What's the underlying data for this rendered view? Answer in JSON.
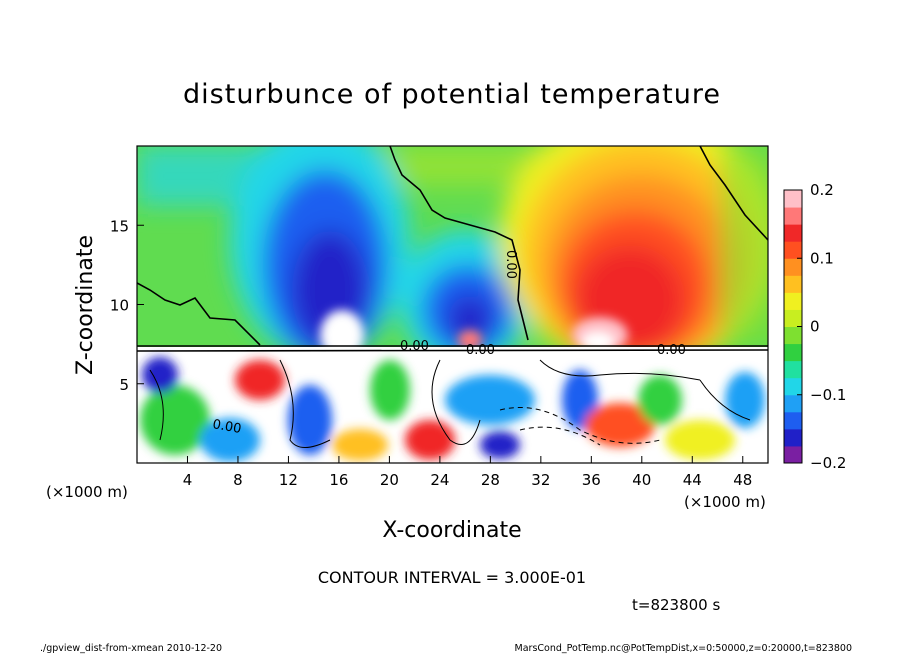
{
  "chart_data": {
    "type": "heatmap",
    "title": "disturbunce of potential temperature",
    "xlabel": "X-coordinate",
    "ylabel": "Z-coordinate",
    "x_unit_left": "(×1000 m)",
    "x_unit_right": "(×1000 m)",
    "xlim": [
      0,
      50
    ],
    "ylim": [
      0,
      20
    ],
    "x_ticks": [
      4,
      8,
      12,
      16,
      20,
      24,
      28,
      32,
      36,
      40,
      44,
      48
    ],
    "y_ticks": [
      5,
      10,
      15
    ],
    "colorbar": {
      "range": [
        -0.2,
        0.2
      ],
      "ticks": [
        {
          "value": 0.2,
          "label": "0.2"
        },
        {
          "value": 0.1,
          "label": "0.1"
        },
        {
          "value": 0,
          "label": "0"
        },
        {
          "value": -0.1,
          "label": "−0.1"
        },
        {
          "value": -0.2,
          "label": "−0.2"
        }
      ],
      "colors": [
        "#7a1fa2",
        "#2020c8",
        "#1e5ef0",
        "#1fa0f5",
        "#21d6e8",
        "#20e0a0",
        "#30d040",
        "#7ee030",
        "#c8ee20",
        "#f0f020",
        "#ffc020",
        "#ff9020",
        "#ff5020",
        "#f02828",
        "#ff7878",
        "#ffc0c8"
      ]
    },
    "contour_labels": [
      "0.00",
      "0.00",
      "0.00",
      "0.00",
      "0.00"
    ],
    "contour_interval": "CONTOUR INTERVAL = 3.000E-01",
    "time_label": "t=823800 s"
  },
  "footer": {
    "left": "./gpview_dist-from-xmean  2010-12-20",
    "right": "MarsCond_PotTemp.nc@PotTempDist,x=0:50000,z=0:20000,t=823800"
  }
}
